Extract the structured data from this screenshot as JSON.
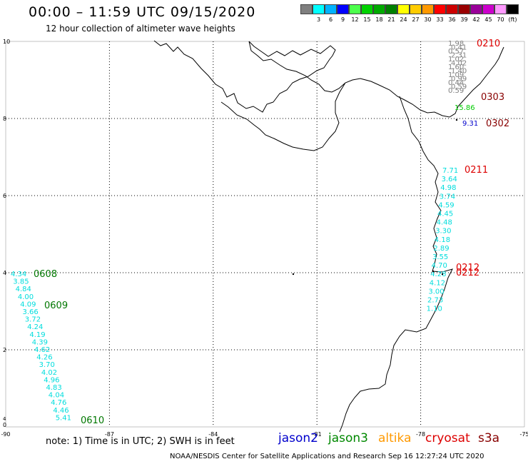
{
  "header": {
    "title": "00:00 – 11:59 UTC 09/15/2020",
    "subtitle": "12 hour collection of altimeter wave heights"
  },
  "legend": {
    "swatches": [
      {
        "color": "#7f7f7f",
        "label": ""
      },
      {
        "color": "#00ffff",
        "label": "3"
      },
      {
        "color": "#00b2ff",
        "label": "6"
      },
      {
        "color": "#0000ff",
        "label": "9"
      },
      {
        "color": "#4cff4c",
        "label": "12"
      },
      {
        "color": "#00d200",
        "label": "15"
      },
      {
        "color": "#00aa00",
        "label": "18"
      },
      {
        "color": "#008000",
        "label": "21"
      },
      {
        "color": "#ffff00",
        "label": "24"
      },
      {
        "color": "#ffcc00",
        "label": "27"
      },
      {
        "color": "#ff9900",
        "label": "30"
      },
      {
        "color": "#ff0000",
        "label": "33"
      },
      {
        "color": "#cc0000",
        "label": "36"
      },
      {
        "color": "#990000",
        "label": "39"
      },
      {
        "color": "#990099",
        "label": "42"
      },
      {
        "color": "#cc00cc",
        "label": "45"
      },
      {
        "color": "#ff99ff",
        "label": "70"
      },
      {
        "color": "#000000",
        "label": "(ft)"
      }
    ]
  },
  "axes": {
    "lon_labels": [
      "-90",
      "-87",
      "-84",
      "-81",
      "-78",
      "-75"
    ],
    "lat_labels": [
      "0",
      "2",
      "4",
      "6",
      "8",
      "10"
    ]
  },
  "tracks": {
    "east_top": {
      "color": "#808080",
      "values": [
        "1.98",
        "0.41",
        "0.57",
        "2.31",
        "1.02",
        "4.02",
        "1.60",
        "1.40",
        "1.09",
        "0.99",
        "0.44",
        "0.59",
        "0.59"
      ]
    },
    "east_single": [
      {
        "value": "15.86",
        "color": "#00cc00"
      },
      {
        "value": "9.31",
        "color": "#0000cc"
      }
    ],
    "coast_column": {
      "color": "#00dddd",
      "values": [
        "7.71",
        "3.64",
        "4.98",
        "3.74",
        "4.59",
        "4.45",
        "4.48",
        "3.30",
        "4.18",
        "2.89",
        "3.55",
        "4.70",
        "4.28",
        "4.12",
        "3.00",
        "2.73",
        "1.10"
      ]
    },
    "west_column": {
      "color": "#00dddd",
      "values": [
        "4.34",
        "3.85",
        "4.84",
        "4.00",
        "4.09",
        "3.66",
        "3.72",
        "4.24",
        "4.19",
        "4.39",
        "4.62",
        "4.26",
        "3.70",
        "4.02",
        "4.96",
        "4.83",
        "4.04",
        "4.76",
        "4.46",
        "5.41"
      ]
    }
  },
  "time_labels": [
    {
      "text": "0210",
      "color": "#dd0000"
    },
    {
      "text": "0303",
      "color": "#880000"
    },
    {
      "text": "0302",
      "color": "#880000"
    },
    {
      "text": "0211",
      "color": "#dd0000"
    },
    {
      "text": "0212",
      "color": "#dd0000"
    },
    {
      "text": "0212",
      "color": "#dd0000"
    },
    {
      "text": "0608",
      "color": "#007700"
    },
    {
      "text": "0609",
      "color": "#007700"
    },
    {
      "text": "0610",
      "color": "#007700"
    }
  ],
  "note": "note:  1) Time is in UTC;  2) SWH is in feet",
  "satellites": [
    {
      "name": "jason2",
      "color": "#0000cc"
    },
    {
      "name": "jason3",
      "color": "#008800"
    },
    {
      "name": "altika",
      "color": "#ff9900"
    },
    {
      "name": "cryosat",
      "color": "#dd0000"
    },
    {
      "name": "s3a",
      "color": "#880000"
    }
  ],
  "footer": "NOAA/NESDIS Center for Satellite Applications and Research    Sep 16 12:27:24 UTC 2020"
}
